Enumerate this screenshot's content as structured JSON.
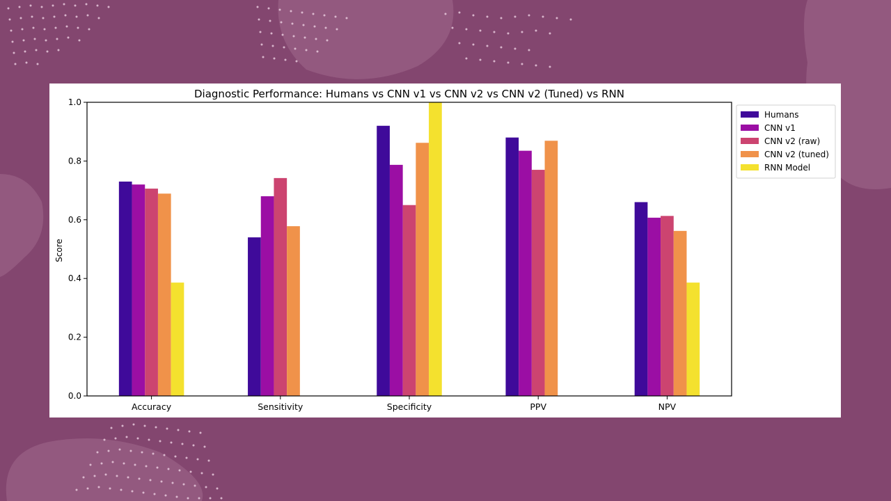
{
  "chart_data": {
    "type": "bar",
    "title": "Diagnostic Performance: Humans vs CNN v1 vs CNN v2 vs CNN v2 (Tuned) vs RNN",
    "xlabel": "",
    "ylabel": "Score",
    "ylim": [
      0,
      1.0
    ],
    "yticks": [
      "0.0",
      "0.2",
      "0.4",
      "0.6",
      "0.8",
      "1.0"
    ],
    "grid": false,
    "legend_position": "outside-top-right",
    "categories": [
      "Accuracy",
      "Sensitivity",
      "Specificity",
      "PPV",
      "NPV"
    ],
    "series": [
      {
        "name": "Humans",
        "color": "#3f0a9a",
        "values": [
          0.73,
          0.54,
          0.92,
          0.88,
          0.66
        ]
      },
      {
        "name": "CNN v1",
        "color": "#9b0ea4",
        "values": [
          0.72,
          0.68,
          0.787,
          0.835,
          0.607
        ]
      },
      {
        "name": "CNN v2 (raw)",
        "color": "#cc4470",
        "values": [
          0.706,
          0.742,
          0.65,
          0.77,
          0.613
        ]
      },
      {
        "name": "CNN v2 (tuned)",
        "color": "#f0924a",
        "values": [
          0.689,
          0.578,
          0.862,
          0.869,
          0.562
        ]
      },
      {
        "name": "RNN Model",
        "color": "#f4e12e",
        "values": [
          0.386,
          0,
          1.0,
          0,
          0.386
        ]
      }
    ]
  }
}
